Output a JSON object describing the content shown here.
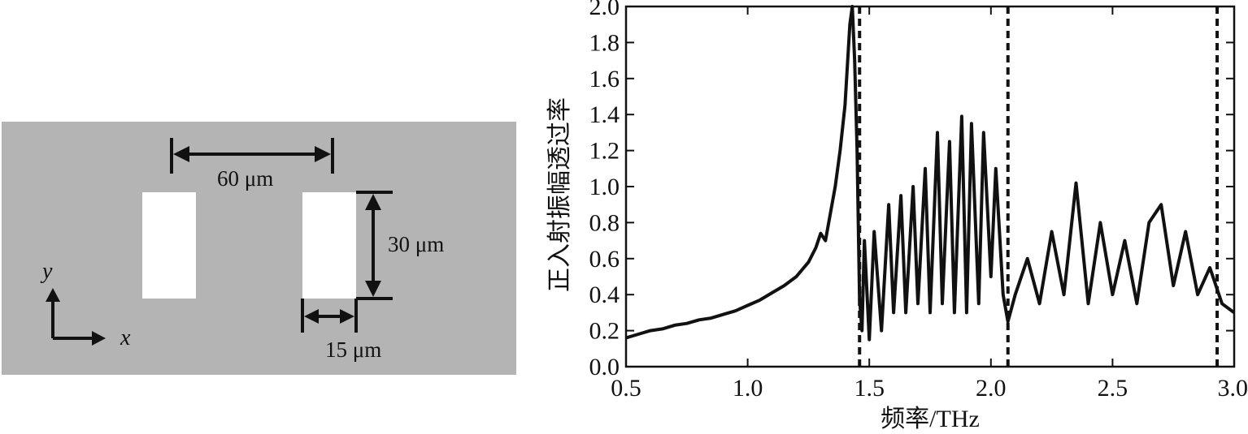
{
  "schematic": {
    "pitch_label": "60 μm",
    "height_label": "30 μm",
    "width_label": "15 μm",
    "y_axis": "y",
    "x_axis": "x"
  },
  "chart_data": {
    "type": "line",
    "xlabel": "频率/THz",
    "ylabel": "正入射振幅透过率",
    "xlim": [
      0.5,
      3.0
    ],
    "ylim": [
      0.0,
      2.0
    ],
    "xticks": [
      "0.5",
      "1.0",
      "1.5",
      "2.0",
      "2.5",
      "3.0"
    ],
    "yticks": [
      "0.0",
      "0.2",
      "0.4",
      "0.6",
      "0.8",
      "1.0",
      "1.2",
      "1.4",
      "1.6",
      "1.8",
      "2.0"
    ],
    "vlines": [
      1.46,
      2.07,
      2.93
    ],
    "grid": false,
    "series": [
      {
        "x": [
          0.5,
          0.55,
          0.6,
          0.65,
          0.7,
          0.75,
          0.8,
          0.85,
          0.9,
          0.95,
          1.0,
          1.05,
          1.1,
          1.15,
          1.2,
          1.25,
          1.28,
          1.3,
          1.32,
          1.34,
          1.36,
          1.38,
          1.4,
          1.42,
          1.43,
          1.44,
          1.45,
          1.46,
          1.47,
          1.48,
          1.5,
          1.52,
          1.55,
          1.58,
          1.6,
          1.63,
          1.65,
          1.68,
          1.7,
          1.73,
          1.75,
          1.78,
          1.8,
          1.83,
          1.85,
          1.88,
          1.9,
          1.92,
          1.95,
          1.97,
          2.0,
          2.02,
          2.05,
          2.07,
          2.1,
          2.15,
          2.2,
          2.25,
          2.3,
          2.35,
          2.4,
          2.45,
          2.5,
          2.55,
          2.6,
          2.65,
          2.7,
          2.75,
          2.8,
          2.85,
          2.9,
          2.95,
          3.0
        ],
        "y": [
          0.16,
          0.18,
          0.2,
          0.21,
          0.23,
          0.24,
          0.26,
          0.27,
          0.29,
          0.31,
          0.34,
          0.37,
          0.41,
          0.45,
          0.5,
          0.58,
          0.66,
          0.74,
          0.7,
          0.85,
          1.0,
          1.2,
          1.45,
          1.9,
          2.0,
          1.7,
          1.2,
          0.38,
          0.2,
          0.7,
          0.15,
          0.75,
          0.2,
          0.9,
          0.3,
          0.95,
          0.3,
          1.0,
          0.35,
          1.1,
          0.3,
          1.3,
          0.35,
          1.25,
          0.3,
          1.39,
          0.3,
          1.35,
          0.35,
          1.3,
          0.5,
          1.1,
          0.4,
          0.25,
          0.4,
          0.6,
          0.35,
          0.75,
          0.4,
          1.02,
          0.35,
          0.8,
          0.4,
          0.7,
          0.35,
          0.8,
          0.9,
          0.45,
          0.75,
          0.4,
          0.55,
          0.35,
          0.3
        ]
      }
    ]
  }
}
